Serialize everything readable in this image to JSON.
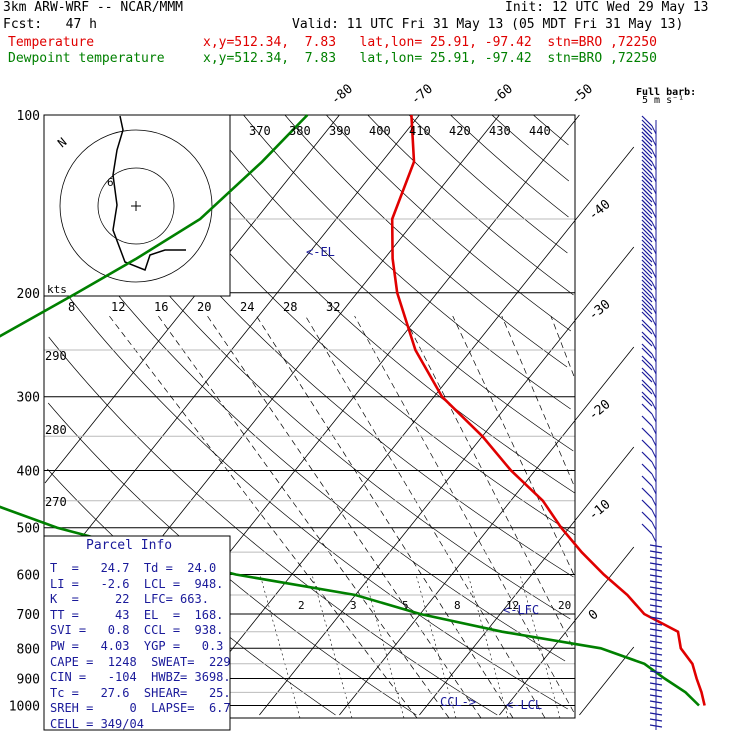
{
  "header": {
    "line1_left": "3km ARW-WRF -- NCAR/MMM",
    "line1_right": "Init: 12 UTC Wed 29 May 13",
    "line2_left": "Fcst:   47 h",
    "line2_right": "Valid: 11 UTC Fri 31 May 13 (05 MDT Fri 31 May 13)",
    "temp_label": "Temperature",
    "temp_info": "x,y=512.34,  7.83   lat,lon= 25.91, -97.42  stn=BRO ,72250",
    "dew_label": "Dewpoint temperature",
    "dew_info": "x,y=512.34,  7.83   lat,lon= 25.91, -97.42  stn=BRO ,72250"
  },
  "colors": {
    "temperature": "#e00000",
    "dewpoint": "#008000",
    "wind": "#1a1a9a",
    "grid": "#000000"
  },
  "parcel_info": {
    "title": "Parcel Info",
    "rows": [
      "T  =   24.7  Td =  24.0",
      "LI =   -2.6  LCL =  948.",
      "K  =     22  LFC= 663.",
      "TT =     43  EL  =  168.",
      "SVI =   0.8  CCL =  938.",
      "PW =   4.03  YGP =   0.3",
      "CAPE =  1248  SWEAT=  229",
      "CIN =   -104  HWBZ= 3698.",
      "Tc =   27.6  SHEAR=   25.",
      "SREH =     0  LAPSE=  6.7",
      "CELL = 349/04"
    ]
  },
  "annotations": {
    "el": "<-EL",
    "lfc": "<-LFC",
    "lcl": "<-LCL",
    "ccl": "CCL->",
    "barb_key": "Full barb:",
    "barb_unit": "5 m s⁻¹"
  },
  "hodograph": {
    "speed_unit": "kts",
    "direction_label": "N",
    "ring_label": "6",
    "ring_ticks": [
      "8",
      "12",
      "16",
      "20",
      "24",
      "28",
      "32"
    ]
  },
  "chart_data": {
    "type": "skew-t",
    "pressure_axis": {
      "label_values": [
        100,
        200,
        300,
        400,
        500,
        600,
        700,
        800,
        900,
        1000
      ],
      "scale": "log",
      "range": [
        1050,
        100
      ]
    },
    "isotherms_c": [
      -80,
      -70,
      -60,
      -50,
      -40,
      -30,
      -20,
      -10,
      0,
      10,
      20,
      30,
      40
    ],
    "theta_labels_k": [
      370,
      380,
      390,
      400,
      410,
      420,
      430,
      440,
      290,
      280,
      270
    ],
    "mixing_ratio_labels": [
      2,
      3,
      5,
      8,
      12,
      20
    ],
    "series": [
      {
        "name": "Temperature",
        "points": [
          [
            100,
            -71
          ],
          [
            120,
            -66
          ],
          [
            150,
            -63
          ],
          [
            175,
            -59
          ],
          [
            200,
            -55
          ],
          [
            250,
            -47
          ],
          [
            300,
            -39
          ],
          [
            350,
            -30
          ],
          [
            400,
            -23
          ],
          [
            450,
            -16
          ],
          [
            500,
            -11
          ],
          [
            550,
            -6
          ],
          [
            600,
            -1
          ],
          [
            650,
            4
          ],
          [
            700,
            8
          ],
          [
            750,
            14
          ],
          [
            800,
            16
          ],
          [
            850,
            19
          ],
          [
            900,
            21
          ],
          [
            950,
            23
          ],
          [
            1000,
            24.7
          ]
        ]
      },
      {
        "name": "Dewpoint temperature",
        "points": [
          [
            100,
            -84
          ],
          [
            120,
            -85
          ],
          [
            150,
            -87
          ],
          [
            175,
            -91
          ],
          [
            200,
            -95
          ],
          [
            250,
            -102
          ],
          [
            300,
            -106
          ],
          [
            350,
            -110
          ],
          [
            400,
            -101
          ],
          [
            450,
            -86
          ],
          [
            500,
            -74
          ],
          [
            550,
            -60
          ],
          [
            600,
            -47
          ],
          [
            650,
            -30
          ],
          [
            700,
            -20
          ],
          [
            750,
            -8
          ],
          [
            800,
            6
          ],
          [
            850,
            13
          ],
          [
            900,
            17
          ],
          [
            950,
            21
          ],
          [
            1000,
            24
          ]
        ]
      }
    ]
  }
}
